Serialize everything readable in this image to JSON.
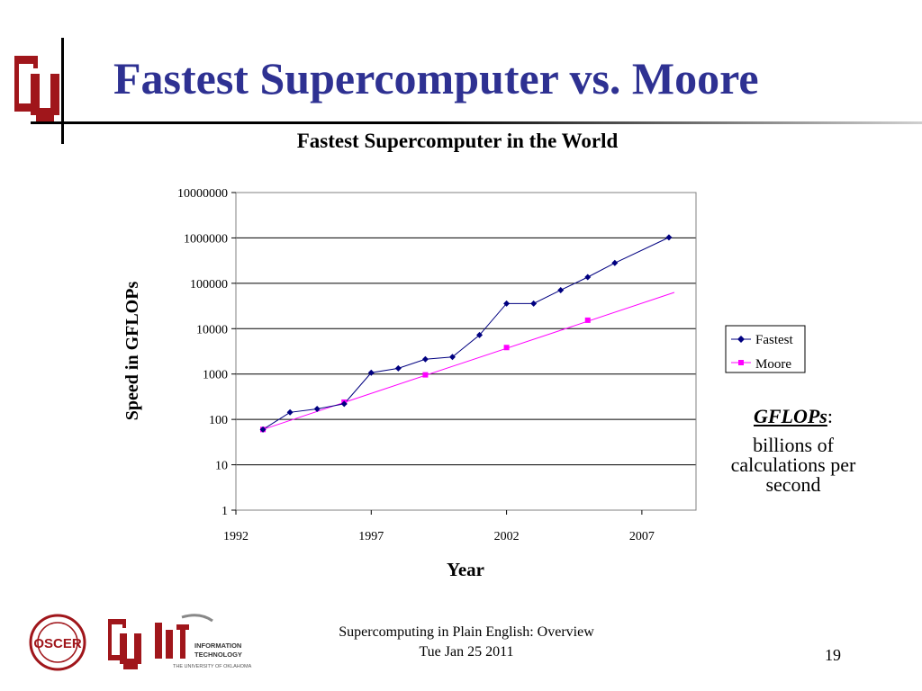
{
  "slide": {
    "title": "Fastest Supercomputer vs. Moore",
    "footer_line1": "Supercomputing in Plain English: Overview",
    "footer_line2": "Tue Jan 25 2011",
    "page_number": "19"
  },
  "note": {
    "heading": "GFLOPs",
    "heading_suffix": ":",
    "body": "billions of calculations per second"
  },
  "logos": {
    "oscer_text": "OSCER",
    "it_label_1": "INFORMATION",
    "it_label_2": "TECHNOLOGY",
    "it_sublabel": "THE UNIVERSITY OF OKLAHOMA"
  },
  "colors": {
    "title": "#2e3192",
    "ou_crimson": "#a0161b",
    "fastest": "#000080",
    "moore": "#ff00ff"
  },
  "chart_data": {
    "type": "line",
    "title": "Fastest Supercomputer in the World",
    "xlabel": "Year",
    "ylabel": "Speed in GFLOPs",
    "yscale": "log",
    "xlim": [
      1992,
      2009
    ],
    "ylim": [
      1,
      10000000
    ],
    "xticks": [
      "1992",
      "1997",
      "2002",
      "2007"
    ],
    "yticks": [
      "1",
      "10",
      "100",
      "1000",
      "10000",
      "100000",
      "1000000",
      "10000000"
    ],
    "grid": "horizontal",
    "legend_position": "right",
    "series": [
      {
        "name": "Fastest",
        "color": "#000080",
        "marker": "diamond",
        "x": [
          1993,
          1994,
          1995,
          1996,
          1997,
          1998,
          1999,
          2000,
          2001,
          2002,
          2003,
          2004,
          2005,
          2006,
          2008
        ],
        "y": [
          60,
          143,
          170,
          220,
          1068,
          1338,
          2121,
          2379,
          7226,
          35860,
          35860,
          70720,
          136800,
          280600,
          1026000
        ]
      },
      {
        "name": "Moore",
        "color": "#ff00ff",
        "marker": "square",
        "x": [
          1993,
          1996,
          1999,
          2002,
          2005
        ],
        "y": [
          60,
          240,
          960,
          3840,
          15360
        ],
        "trend": {
          "x": [
            1993,
            2008.2
          ],
          "y": [
            60,
            62900
          ]
        }
      }
    ]
  }
}
